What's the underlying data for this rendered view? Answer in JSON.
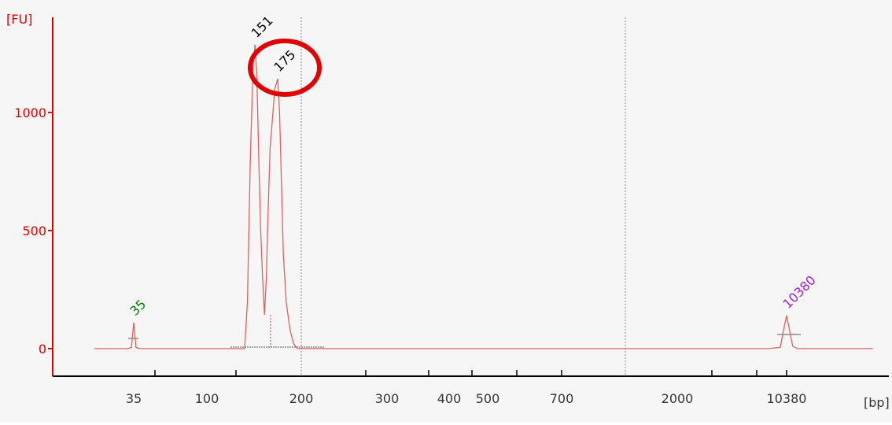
{
  "chart_data": {
    "type": "line",
    "y_label": "[FU]",
    "x_label": "[bp]",
    "xticks": [
      35,
      100,
      200,
      300,
      400,
      500,
      700,
      2000,
      10380
    ],
    "ylim": [
      -117,
      1403
    ],
    "yticks": [
      0,
      500,
      1000
    ],
    "axis_color": "#e00000",
    "series": [
      {
        "color": "#e06060",
        "x": [
          0,
          30,
          33,
          34,
          35,
          36,
          37,
          40,
          120,
          140,
          143,
          146,
          149,
          151,
          153,
          155,
          157,
          159,
          161,
          163,
          165,
          167,
          170,
          172,
          175,
          177,
          179,
          181,
          184,
          188,
          192,
          196,
          300,
          1000,
          5000,
          9000,
          9900,
          10150,
          10380,
          10600,
          10850,
          11200,
          17000
        ],
        "values": [
          0,
          0,
          5,
          60,
          110,
          60,
          5,
          0,
          0,
          0,
          200,
          800,
          1200,
          1287,
          1150,
          800,
          500,
          300,
          143,
          300,
          600,
          850,
          1000,
          1100,
          1143,
          1000,
          700,
          400,
          200,
          80,
          20,
          0,
          0,
          0,
          0,
          0,
          5,
          80,
          140,
          80,
          10,
          0,
          0
        ]
      }
    ],
    "peak_labels": [
      {
        "x": 35,
        "y": 110,
        "label": "35",
        "color": "#007a00"
      },
      {
        "x": 151,
        "y": 1287,
        "label": "151",
        "color": "#000000"
      },
      {
        "x": 175,
        "y": 1143,
        "label": "175",
        "color": "#000000"
      },
      {
        "x": 10380,
        "y": 140,
        "label": "10380",
        "color": "#a020d0"
      }
    ]
  }
}
